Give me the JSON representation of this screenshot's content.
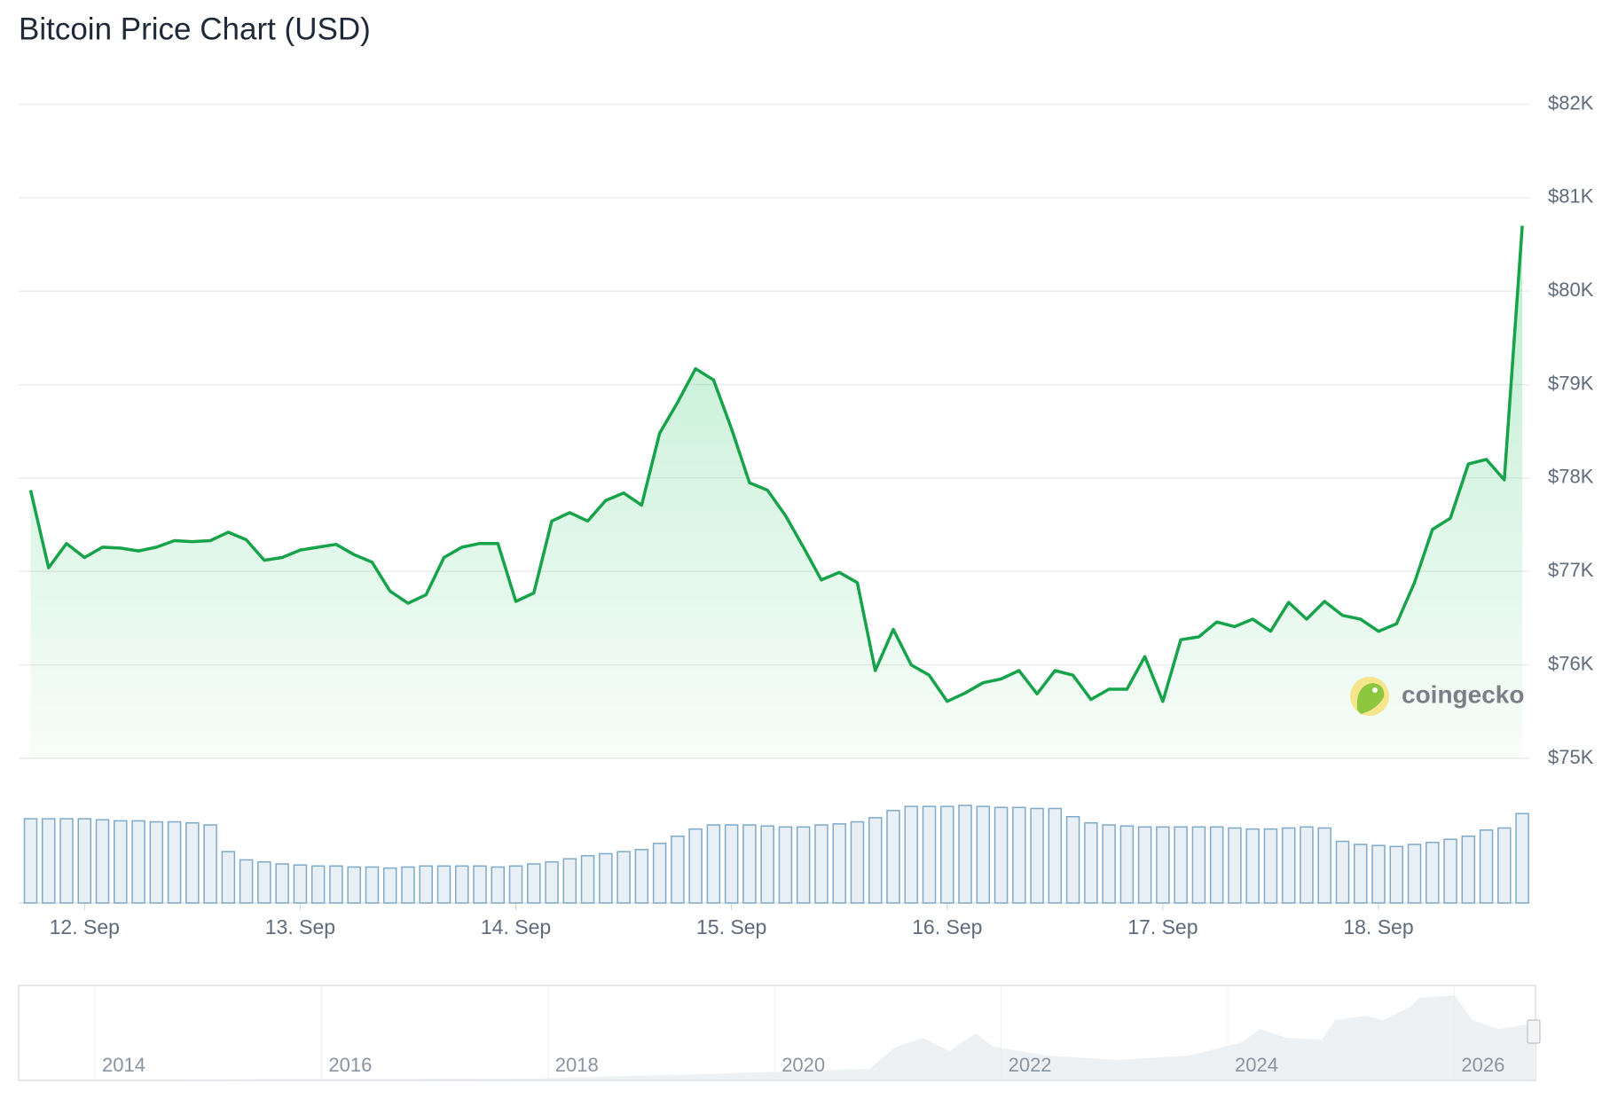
{
  "chart_data": {
    "type": "line",
    "title": "Bitcoin Price Chart (USD)",
    "watermark": "coingecko",
    "categories": [
      null,
      null,
      null,
      "12. Sep",
      null,
      null,
      null,
      null,
      null,
      null,
      null,
      null,
      null,
      null,
      null,
      "13. Sep",
      null,
      null,
      null,
      null,
      null,
      null,
      null,
      null,
      null,
      null,
      null,
      "14. Sep",
      null,
      null,
      null,
      null,
      null,
      null,
      null,
      null,
      null,
      null,
      null,
      "15. Sep",
      null,
      null,
      null,
      null,
      null,
      null,
      null,
      null,
      null,
      null,
      null,
      "16. Sep",
      null,
      null,
      null,
      null,
      null,
      null,
      null,
      null,
      null,
      null,
      null,
      "17. Sep",
      null,
      null,
      null,
      null,
      null,
      null,
      null,
      null,
      null,
      null,
      null,
      "18. Sep",
      null,
      null,
      null,
      null,
      null,
      null,
      null,
      null
    ],
    "series": [
      {
        "color": "#16a34a",
        "values": [
          77870,
          77040,
          77300,
          77150,
          77260,
          77250,
          77220,
          77260,
          77330,
          77320,
          77330,
          77420,
          77340,
          77120,
          77150,
          77230,
          77260,
          77290,
          77180,
          77100,
          76790,
          76660,
          76750,
          77150,
          77260,
          77300,
          77300,
          76680,
          76770,
          77540,
          77630,
          77540,
          77760,
          77840,
          77710,
          78480,
          78810,
          79170,
          79050,
          78530,
          77950,
          77870,
          77600,
          77260,
          76910,
          76990,
          76880,
          75940,
          76380,
          76000,
          75890,
          75610,
          75700,
          75810,
          75850,
          75940,
          75690,
          75940,
          75890,
          75630,
          75740,
          75740,
          76090,
          75610,
          76270,
          76300,
          76460,
          76410,
          76490,
          76360,
          76670,
          76490,
          76680,
          76530,
          76490,
          76360,
          76440,
          76880,
          77450,
          77570,
          78150,
          78200,
          77980,
          80700
        ]
      },
      {
        "color": "#7fa9c9",
        "values": [
          82,
          82,
          82,
          82,
          81,
          80,
          80,
          79,
          79,
          78,
          76,
          50,
          42,
          40,
          38,
          37,
          36,
          36,
          35,
          35,
          34,
          35,
          36,
          36,
          36,
          36,
          35,
          36,
          38,
          40,
          43,
          46,
          48,
          50,
          52,
          58,
          65,
          72,
          76,
          76,
          76,
          75,
          74,
          74,
          76,
          77,
          79,
          83,
          90,
          94,
          94,
          94,
          95,
          94,
          93,
          93,
          92,
          92,
          84,
          78,
          76,
          75,
          74,
          74,
          74,
          74,
          74,
          73,
          72,
          72,
          73,
          74,
          73,
          60,
          57,
          56,
          55,
          57,
          59,
          62,
          65,
          71,
          73,
          87
        ]
      }
    ],
    "ylim": [
      75000,
      82000
    ],
    "yticks": [
      {
        "value": 75000,
        "label": "$75K"
      },
      {
        "value": 76000,
        "label": "$76K"
      },
      {
        "value": 77000,
        "label": "$77K"
      },
      {
        "value": 78000,
        "label": "$78K"
      },
      {
        "value": 79000,
        "label": "$79K"
      },
      {
        "value": 80000,
        "label": "$80K"
      },
      {
        "value": 81000,
        "label": "$81K"
      },
      {
        "value": 82000,
        "label": "$82K"
      }
    ],
    "grid": true,
    "navigator": {
      "labels": [
        "2014",
        "2016",
        "2018",
        "2020",
        "2022",
        "2024",
        "2026"
      ]
    }
  }
}
